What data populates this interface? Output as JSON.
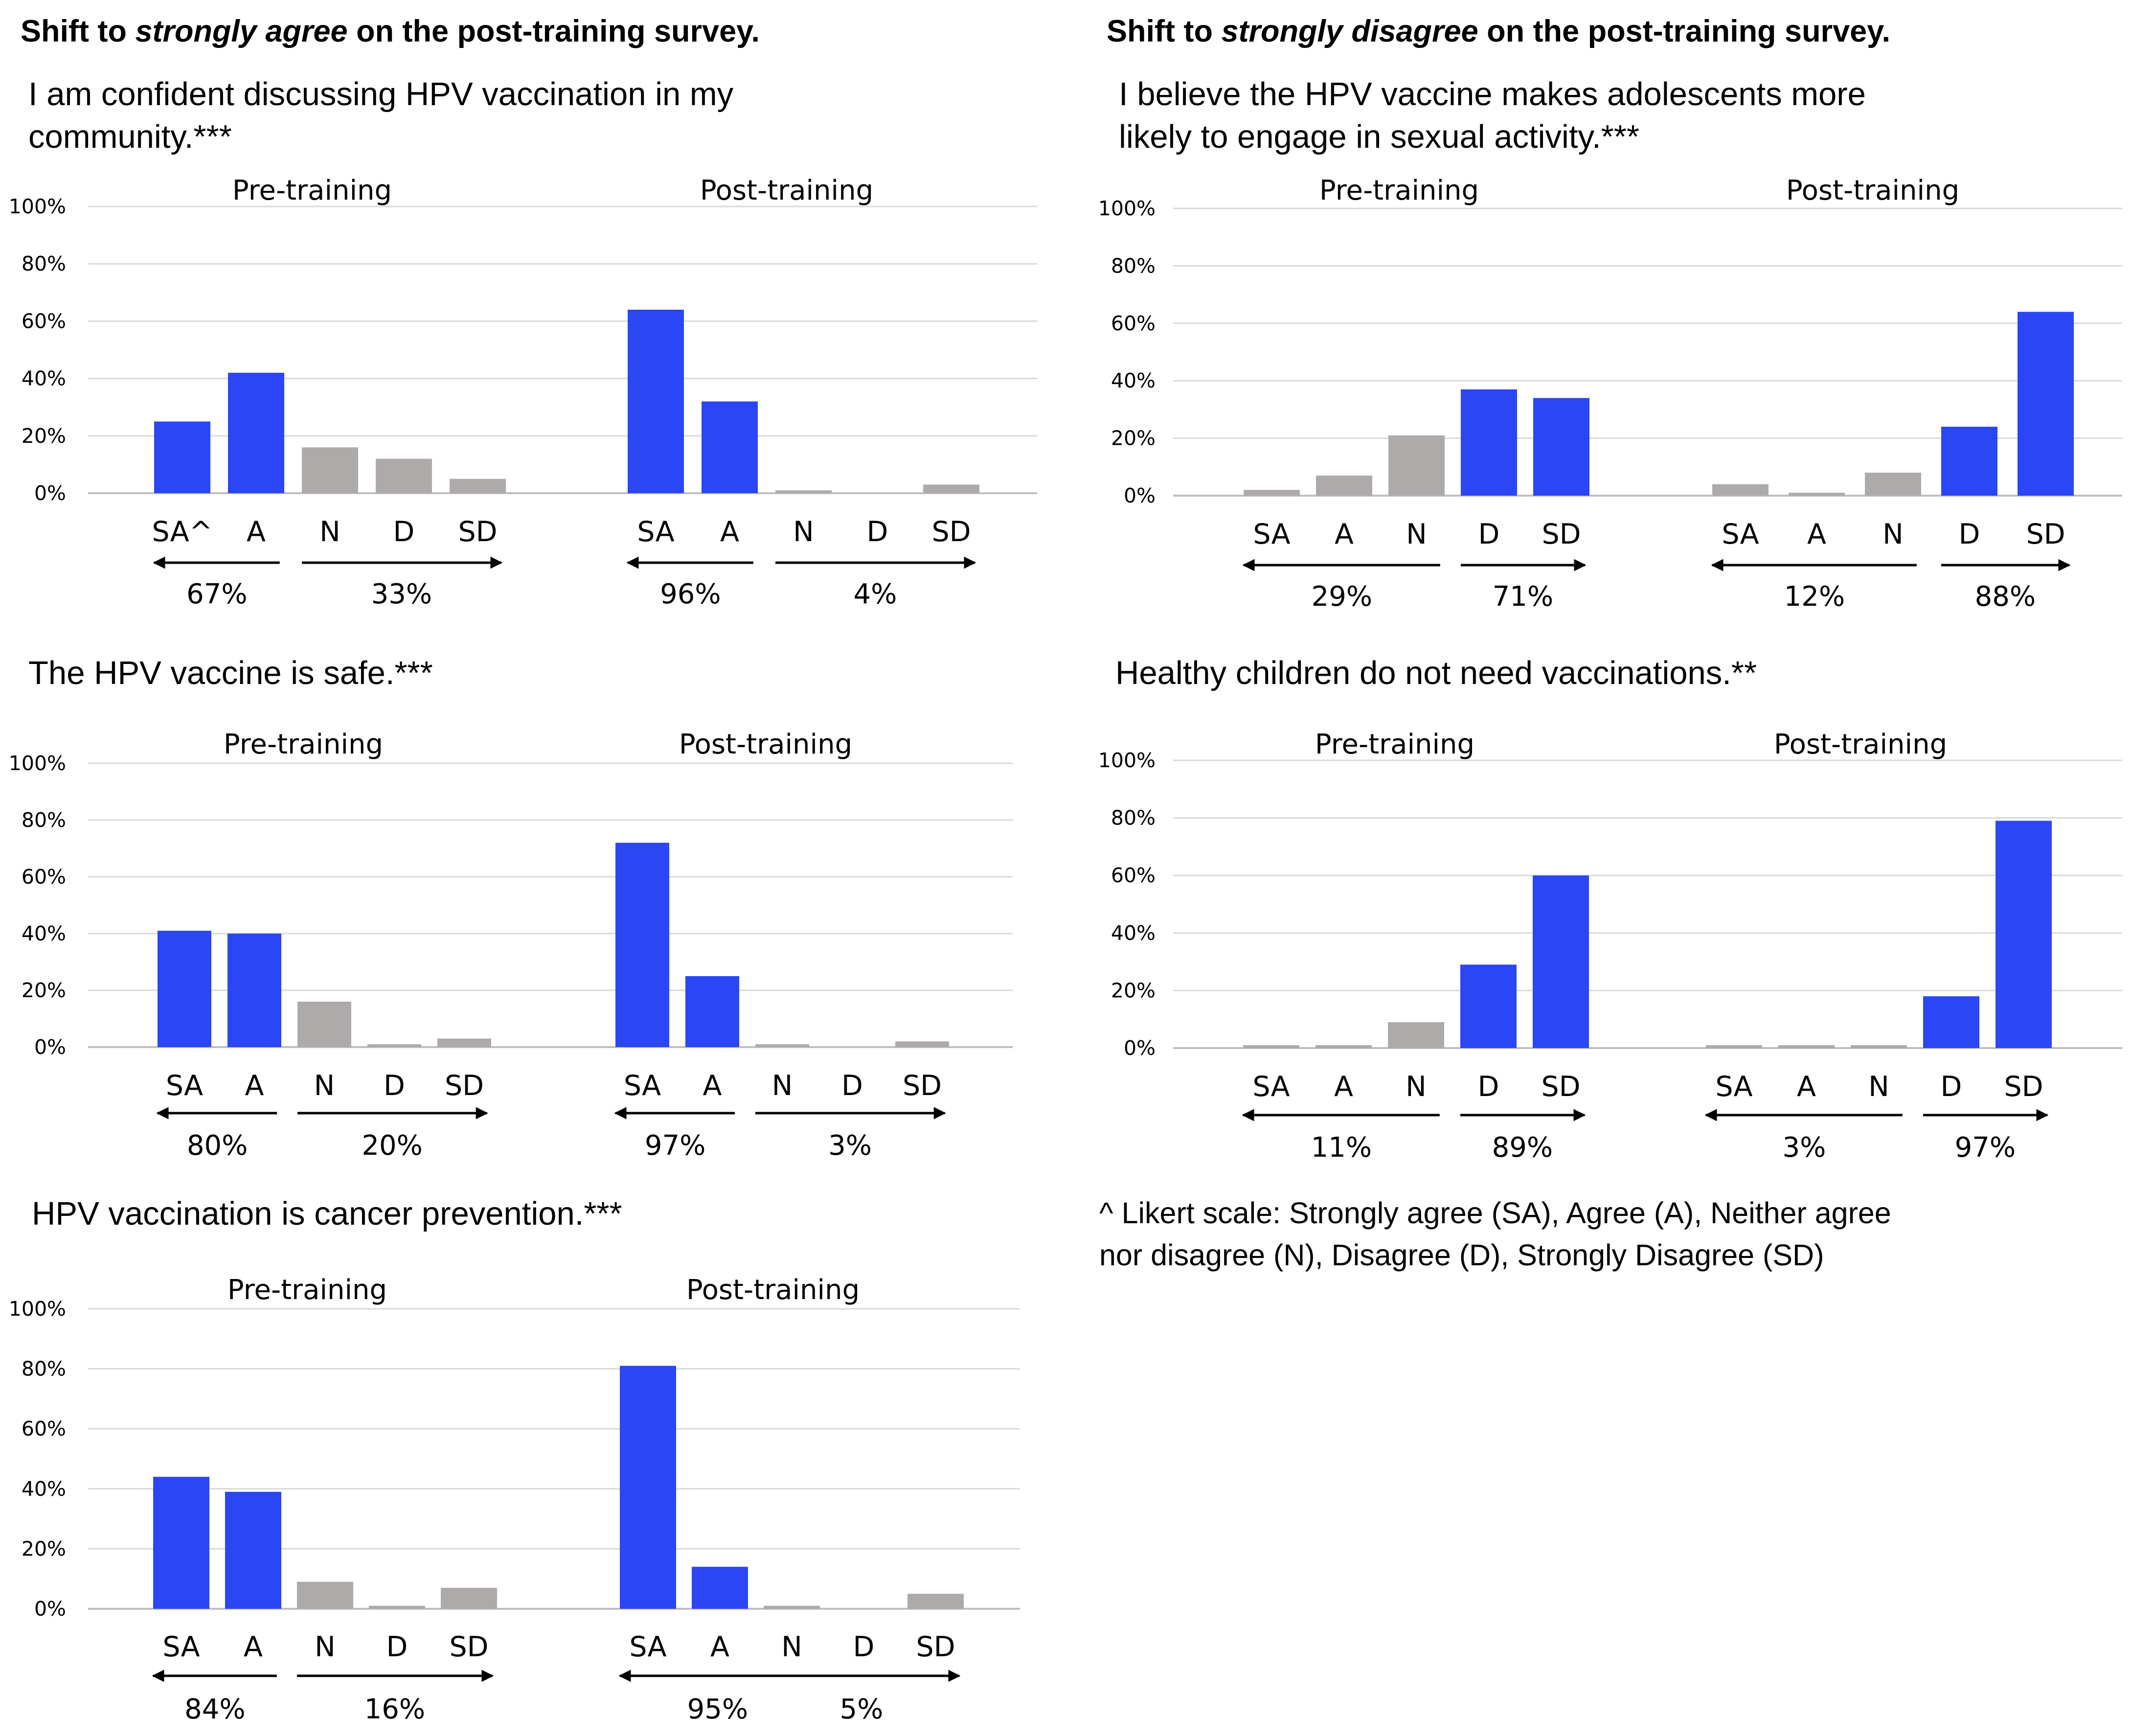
{
  "headings": {
    "left": {
      "prefix": "Shift to ",
      "emph": "strongly agree",
      "suffix": " on the post-training survey."
    },
    "right": {
      "prefix": "Shift to ",
      "emph": "strongly disagree",
      "suffix": " on the post-training survey."
    }
  },
  "footnote": {
    "lines": [
      "^ Likert scale: Strongly agree (SA), Agree (A), Neither agree",
      "nor disagree (N), Disagree (D), Strongly Disagree (SD)"
    ]
  },
  "colors": {
    "blue": "#2b46f5",
    "gray": "#aeaaaa",
    "grid": "#d9d9d9",
    "axis": "#bfbfbf"
  },
  "chart_data": [
    {
      "type": "bar",
      "title_lines": [
        "I am confident discussing HPV vaccination in my",
        "community.***"
      ],
      "ylabel_ticks": [
        "0%",
        "20%",
        "40%",
        "60%",
        "80%",
        "100%"
      ],
      "ylim": [
        0,
        100
      ],
      "groups": [
        {
          "name": "Pre-training",
          "categories": [
            "SA^",
            "A",
            "N",
            "D",
            "SD"
          ],
          "values": [
            25,
            42,
            16,
            12,
            5
          ],
          "highlight": [
            "blue",
            "blue",
            "gray",
            "gray",
            "gray"
          ],
          "arrows": [
            {
              "direction": "left",
              "from": 0,
              "to": 1,
              "label": "67%"
            },
            {
              "direction": "right",
              "from": 2,
              "to": 4,
              "label": "33%"
            }
          ]
        },
        {
          "name": "Post-training",
          "categories": [
            "SA",
            "A",
            "N",
            "D",
            "SD"
          ],
          "values": [
            64,
            32,
            1,
            0,
            3
          ],
          "highlight": [
            "blue",
            "blue",
            "gray",
            "gray",
            "gray"
          ],
          "arrows": [
            {
              "direction": "left",
              "from": 0,
              "to": 1,
              "label": "96%"
            },
            {
              "direction": "right",
              "from": 2,
              "to": 4,
              "label": "4%"
            }
          ]
        }
      ]
    },
    {
      "type": "bar",
      "title_lines": [
        "I believe the HPV vaccine makes adolescents more",
        "likely to engage in sexual activity.***"
      ],
      "ylabel_ticks": [
        "0%",
        "20%",
        "40%",
        "60%",
        "80%",
        "100%"
      ],
      "ylim": [
        0,
        100
      ],
      "groups": [
        {
          "name": "Pre-training",
          "categories": [
            "SA",
            "A",
            "N",
            "D",
            "SD"
          ],
          "values": [
            2,
            7,
            21,
            37,
            34
          ],
          "highlight": [
            "gray",
            "gray",
            "gray",
            "blue",
            "blue"
          ],
          "arrows": [
            {
              "direction": "left",
              "from": 0,
              "to": 2,
              "label": "29%"
            },
            {
              "direction": "right",
              "from": 3,
              "to": 4,
              "label": "71%"
            }
          ]
        },
        {
          "name": "Post-training",
          "categories": [
            "SA",
            "A",
            "N",
            "D",
            "SD"
          ],
          "values": [
            4,
            1,
            8,
            24,
            64
          ],
          "highlight": [
            "gray",
            "gray",
            "gray",
            "blue",
            "blue"
          ],
          "arrows": [
            {
              "direction": "left",
              "from": 0,
              "to": 2,
              "label": "12%"
            },
            {
              "direction": "right",
              "from": 3,
              "to": 4,
              "label": "88%"
            }
          ]
        }
      ]
    },
    {
      "type": "bar",
      "title_lines": [
        "The HPV vaccine is safe.***"
      ],
      "ylabel_ticks": [
        "0%",
        "20%",
        "40%",
        "60%",
        "80%",
        "100%"
      ],
      "ylim": [
        0,
        100
      ],
      "groups": [
        {
          "name": "Pre-training",
          "categories": [
            "SA",
            "A",
            "N",
            "D",
            "SD"
          ],
          "values": [
            41,
            40,
            16,
            1,
            3
          ],
          "highlight": [
            "blue",
            "blue",
            "gray",
            "gray",
            "gray"
          ],
          "arrows": [
            {
              "direction": "left",
              "from": 0,
              "to": 1,
              "label": "80%"
            },
            {
              "direction": "right",
              "from": 2,
              "to": 4,
              "label": "20%"
            }
          ]
        },
        {
          "name": "Post-training",
          "categories": [
            "SA",
            "A",
            "N",
            "D",
            "SD"
          ],
          "values": [
            72,
            25,
            1,
            0,
            2
          ],
          "highlight": [
            "blue",
            "blue",
            "gray",
            "gray",
            "gray"
          ],
          "arrows": [
            {
              "direction": "left",
              "from": 0,
              "to": 1,
              "label": "97%"
            },
            {
              "direction": "right",
              "from": 2,
              "to": 4,
              "label": "3%"
            }
          ]
        }
      ]
    },
    {
      "type": "bar",
      "title_lines": [
        "Healthy children do not need vaccinations.**"
      ],
      "ylabel_ticks": [
        "0%",
        "20%",
        "40%",
        "60%",
        "80%",
        "100%"
      ],
      "ylim": [
        0,
        100
      ],
      "groups": [
        {
          "name": "Pre-training",
          "categories": [
            "SA",
            "A",
            "N",
            "D",
            "SD"
          ],
          "values": [
            1,
            1,
            9,
            29,
            60
          ],
          "highlight": [
            "gray",
            "gray",
            "gray",
            "blue",
            "blue"
          ],
          "arrows": [
            {
              "direction": "left",
              "from": 0,
              "to": 2,
              "label": "11%"
            },
            {
              "direction": "right",
              "from": 3,
              "to": 4,
              "label": "89%"
            }
          ]
        },
        {
          "name": "Post-training",
          "categories": [
            "SA",
            "A",
            "N",
            "D",
            "SD"
          ],
          "values": [
            1,
            1,
            1,
            18,
            79
          ],
          "highlight": [
            "gray",
            "gray",
            "gray",
            "blue",
            "blue"
          ],
          "arrows": [
            {
              "direction": "left",
              "from": 0,
              "to": 2,
              "label": "3%"
            },
            {
              "direction": "right",
              "from": 3,
              "to": 4,
              "label": "97%"
            }
          ]
        }
      ]
    },
    {
      "type": "bar",
      "title_lines": [
        "HPV vaccination is cancer prevention.***"
      ],
      "ylabel_ticks": [
        "0%",
        "20%",
        "40%",
        "60%",
        "80%",
        "100%"
      ],
      "ylim": [
        0,
        100
      ],
      "groups": [
        {
          "name": "Pre-training",
          "categories": [
            "SA",
            "A",
            "N",
            "D",
            "SD"
          ],
          "values": [
            44,
            39,
            9,
            1,
            7
          ],
          "highlight": [
            "blue",
            "blue",
            "gray",
            "gray",
            "gray"
          ],
          "arrows": [
            {
              "direction": "left",
              "from": 0,
              "to": 1,
              "label": "84%"
            },
            {
              "direction": "right",
              "from": 2,
              "to": 4,
              "label": "16%"
            }
          ]
        },
        {
          "name": "Post-training",
          "categories": [
            "SA",
            "A",
            "N",
            "D",
            "SD"
          ],
          "values": [
            81,
            14,
            1,
            0,
            5
          ],
          "highlight": [
            "blue",
            "blue",
            "gray",
            "gray",
            "gray"
          ],
          "arrows": [
            {
              "direction": "left",
              "from": 0,
              "to": 2,
              "label": "95%"
            },
            {
              "direction": "right",
              "from": 2,
              "to": 4,
              "label": "5%"
            }
          ]
        }
      ]
    }
  ]
}
